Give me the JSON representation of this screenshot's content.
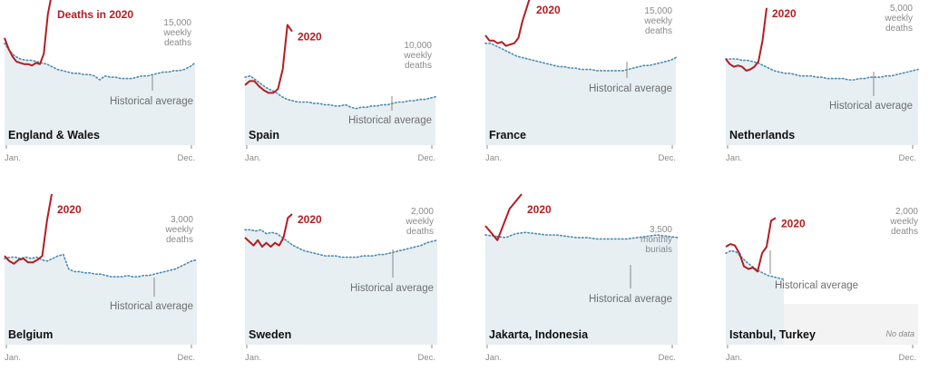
{
  "colors": {
    "area": "#e7eff3",
    "historical": "#4a8bb0",
    "year2020": "#b31e22",
    "marker": "#8a8a8a",
    "nodata": "#f3f3f3"
  },
  "labels": {
    "historical_average": "Historical average",
    "jan": "Jan.",
    "dec": "Dec.",
    "deaths_in_2020": "Deaths in 2020",
    "year": "2020",
    "no_data": "No data"
  },
  "chart_data": [
    {
      "type": "line",
      "title": "England & Wales",
      "scale_label": [
        "15,000",
        "weekly",
        "deaths"
      ],
      "x_range": [
        "Jan.",
        "Dec."
      ],
      "series": [
        {
          "name": "Historical average",
          "values": [
            0.78,
            0.72,
            0.68,
            0.66,
            0.65,
            0.65,
            0.64,
            0.63,
            0.62,
            0.6,
            0.58,
            0.57,
            0.56,
            0.55,
            0.55,
            0.54,
            0.54,
            0.53,
            0.5,
            0.53,
            0.52,
            0.52,
            0.51,
            0.51,
            0.51,
            0.52,
            0.53,
            0.53,
            0.54,
            0.55,
            0.56,
            0.56,
            0.57,
            0.57,
            0.58,
            0.6,
            0.63
          ]
        },
        {
          "name": "2020",
          "values": [
            0.82,
            0.74,
            0.68,
            0.64,
            0.63,
            0.62,
            0.62,
            0.61,
            0.63,
            0.62,
            0.7,
            1.0,
            1.32
          ]
        }
      ]
    },
    {
      "type": "line",
      "title": "Spain",
      "scale_label": [
        "10,000",
        "weekly",
        "deaths"
      ],
      "x_range": [
        "Jan.",
        "Dec."
      ],
      "series": [
        {
          "name": "Historical average",
          "values": [
            0.52,
            0.53,
            0.5,
            0.47,
            0.44,
            0.42,
            0.4,
            0.37,
            0.35,
            0.34,
            0.33,
            0.33,
            0.33,
            0.32,
            0.32,
            0.31,
            0.31,
            0.3,
            0.3,
            0.31,
            0.29,
            0.28,
            0.29,
            0.29,
            0.3,
            0.3,
            0.31,
            0.31,
            0.32,
            0.33,
            0.33,
            0.34,
            0.34,
            0.35,
            0.35,
            0.36,
            0.37
          ]
        },
        {
          "name": "2020",
          "values": [
            0.46,
            0.49,
            0.49,
            0.45,
            0.42,
            0.4,
            0.4,
            0.43,
            0.58,
            0.92,
            0.87
          ]
        }
      ]
    },
    {
      "type": "line",
      "title": "France",
      "scale_label": [
        "15,000",
        "weekly",
        "deaths"
      ],
      "x_range": [
        "Jan.",
        "Dec."
      ],
      "series": [
        {
          "name": "Historical average",
          "values": [
            0.78,
            0.78,
            0.76,
            0.74,
            0.72,
            0.7,
            0.68,
            0.67,
            0.66,
            0.65,
            0.64,
            0.63,
            0.62,
            0.61,
            0.6,
            0.6,
            0.59,
            0.59,
            0.58,
            0.58,
            0.58,
            0.57,
            0.57,
            0.57,
            0.57,
            0.57,
            0.57,
            0.58,
            0.59,
            0.6,
            0.61,
            0.61,
            0.62,
            0.63,
            0.64,
            0.65,
            0.67
          ]
        },
        {
          "name": "2020",
          "values": [
            0.84,
            0.8,
            0.8,
            0.78,
            0.79,
            0.76,
            0.77,
            0.78,
            0.82,
            0.95,
            1.05,
            1.15
          ]
        }
      ]
    },
    {
      "type": "line",
      "title": "Netherlands",
      "scale_label": [
        "5,000",
        "weekly",
        "deaths"
      ],
      "x_range": [
        "Jan.",
        "Dec."
      ],
      "series": [
        {
          "name": "Historical average",
          "values": [
            0.66,
            0.66,
            0.66,
            0.65,
            0.65,
            0.64,
            0.63,
            0.61,
            0.59,
            0.57,
            0.56,
            0.55,
            0.55,
            0.54,
            0.53,
            0.53,
            0.53,
            0.52,
            0.52,
            0.51,
            0.51,
            0.51,
            0.51,
            0.5,
            0.5,
            0.51,
            0.51,
            0.52,
            0.52,
            0.52,
            0.53,
            0.53,
            0.54,
            0.55,
            0.56,
            0.57,
            0.58
          ]
        },
        {
          "name": "2020",
          "values": [
            0.66,
            0.62,
            0.6,
            0.61,
            0.6,
            0.57,
            0.58,
            0.6,
            0.64,
            0.8,
            1.05
          ]
        }
      ]
    },
    {
      "type": "line",
      "title": "Belgium",
      "scale_label": [
        "3,000",
        "weekly",
        "deaths"
      ],
      "x_range": [
        "Jan.",
        "Dec."
      ],
      "series": [
        {
          "name": "Historical average",
          "values": [
            0.66,
            0.67,
            0.67,
            0.66,
            0.67,
            0.66,
            0.67,
            0.65,
            0.64,
            0.66,
            0.68,
            0.69,
            0.58,
            0.56,
            0.56,
            0.55,
            0.55,
            0.54,
            0.54,
            0.53,
            0.52,
            0.52,
            0.52,
            0.53,
            0.52,
            0.52,
            0.53,
            0.53,
            0.54,
            0.55,
            0.56,
            0.57,
            0.58,
            0.6,
            0.62,
            0.64,
            0.65
          ]
        },
        {
          "name": "2020",
          "values": [
            0.68,
            0.64,
            0.62,
            0.65,
            0.66,
            0.63,
            0.63,
            0.65,
            0.68,
            0.95,
            1.28
          ]
        }
      ]
    },
    {
      "type": "line",
      "title": "Sweden",
      "scale_label": [
        "2,000",
        "weekly",
        "deaths"
      ],
      "x_range": [
        "Jan.",
        "Dec."
      ],
      "series": [
        {
          "name": "Historical average",
          "values": [
            0.88,
            0.88,
            0.87,
            0.88,
            0.85,
            0.86,
            0.85,
            0.82,
            0.79,
            0.76,
            0.74,
            0.72,
            0.71,
            0.7,
            0.69,
            0.68,
            0.68,
            0.68,
            0.67,
            0.67,
            0.67,
            0.67,
            0.68,
            0.68,
            0.68,
            0.69,
            0.69,
            0.7,
            0.71,
            0.72,
            0.73,
            0.74,
            0.75,
            0.76,
            0.78,
            0.79,
            0.8
          ]
        },
        {
          "name": "2020",
          "values": [
            0.82,
            0.79,
            0.76,
            0.8,
            0.75,
            0.78,
            0.75,
            0.78,
            0.76,
            0.82,
            0.97,
            1.0
          ]
        }
      ]
    },
    {
      "type": "line",
      "title": "Jakarta, Indonesia",
      "scale_label": [
        "3,500",
        "monthly",
        "burials"
      ],
      "x_range": [
        "Jan.",
        "Dec."
      ],
      "series": [
        {
          "name": "Historical average",
          "values": [
            0.84,
            0.83,
            0.82,
            0.85,
            0.86,
            0.85,
            0.84,
            0.84,
            0.83,
            0.82,
            0.82,
            0.81,
            0.81,
            0.81,
            0.81,
            0.82,
            0.83,
            0.84,
            0.83,
            0.82
          ]
        },
        {
          "name": "2020",
          "values": [
            0.91,
            0.8,
            1.04,
            1.38
          ]
        }
      ]
    },
    {
      "type": "line",
      "title": "Istanbul, Turkey",
      "scale_label": [
        "2,000",
        "weekly",
        "deaths"
      ],
      "x_range": [
        "Jan.",
        "Dec."
      ],
      "series": [
        {
          "name": "Historical average",
          "values": [
            0.7,
            0.72,
            0.71,
            0.67,
            0.63,
            0.6,
            0.57,
            0.55,
            0.53,
            0.52,
            0.51,
            0.5
          ]
        },
        {
          "name": "2020",
          "values": [
            0.75,
            0.77,
            0.76,
            0.7,
            0.6,
            0.58,
            0.59,
            0.56,
            0.7,
            0.75,
            0.95,
            0.97
          ]
        }
      ]
    }
  ]
}
